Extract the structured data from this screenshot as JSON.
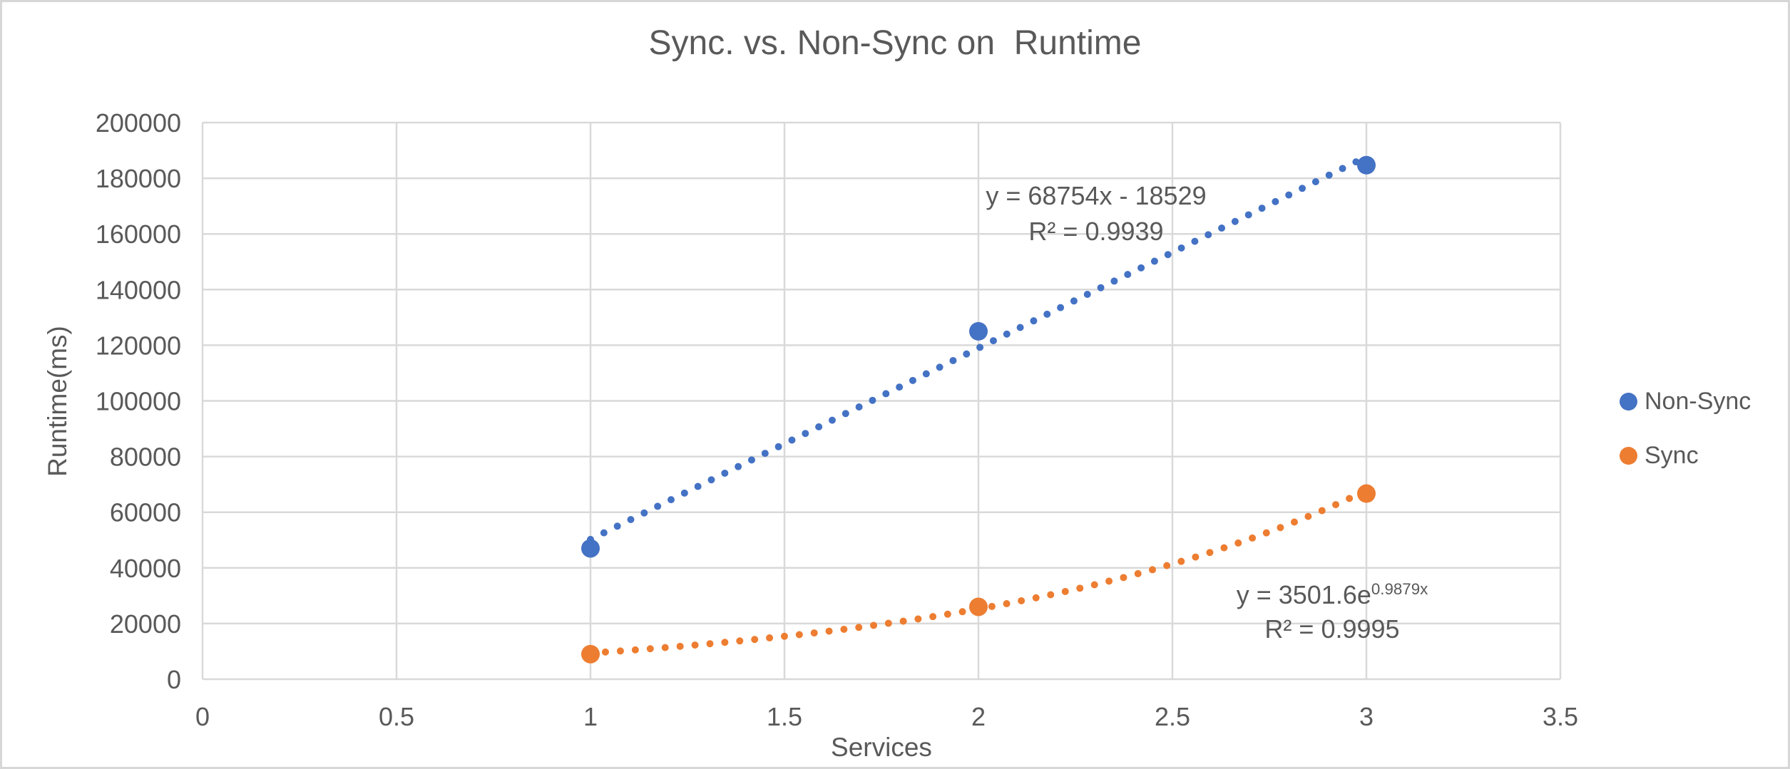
{
  "chart_data": {
    "type": "scatter",
    "title": "Sync. vs. Non-Sync on  Runtime",
    "xlabel": "Services",
    "ylabel": "Runtime(ms)",
    "xlim": [
      0,
      3.5
    ],
    "ylim": [
      0,
      200000
    ],
    "x_ticks": [
      "0",
      "0.5",
      "1",
      "1.5",
      "2",
      "2.5",
      "3",
      "3.5"
    ],
    "y_ticks": [
      "0",
      "20000",
      "40000",
      "60000",
      "80000",
      "100000",
      "120000",
      "140000",
      "160000",
      "180000",
      "200000"
    ],
    "grid": true,
    "legend_position": "right",
    "x": [
      1,
      2,
      3
    ],
    "series": [
      {
        "name": "Non-Sync",
        "color": "#4472C4",
        "values": [
          47000,
          125000,
          184700
        ],
        "trendline": {
          "type": "linear",
          "style": "dotted",
          "slope": 68754,
          "intercept": -18529,
          "x_range": [
            1,
            3
          ],
          "equation": "y = 68754x - 18529",
          "r2": "R² = 0.9939"
        }
      },
      {
        "name": "Sync",
        "color": "#ED7D31",
        "values": [
          9000,
          26000,
          66700
        ],
        "trendline": {
          "type": "exponential",
          "style": "dotted",
          "a": 3501.6,
          "b": 0.9879,
          "x_range": [
            1,
            3
          ],
          "equation_base": "y = 3501.6e",
          "equation_exponent": "0.9879x",
          "r2": "R² = 0.9995"
        }
      }
    ],
    "colors": {
      "grid": "#D9D9D9",
      "text": "#595959"
    }
  }
}
